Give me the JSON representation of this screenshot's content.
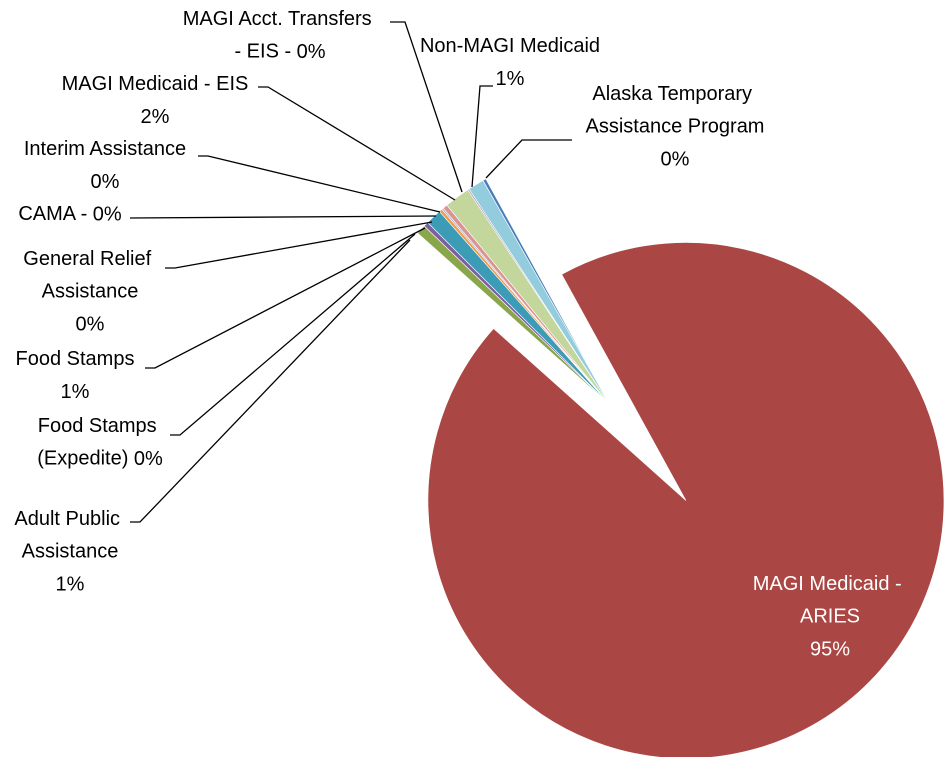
{
  "chart_data": {
    "type": "pie",
    "categories": [
      "Alaska Temporary Assistance Program",
      "MAGI Medicaid - ARIES",
      "Adult Public Assistance",
      "Food Stamps (Expedite)",
      "Food Stamps",
      "General Relief Assistance",
      "CAMA -",
      "Interim Assistance",
      "MAGI Medicaid - EIS",
      "MAGI Acct. Transfers - EIS -",
      "Non-MAGI Medicaid"
    ],
    "values": [
      0.2,
      94.6,
      0.6,
      0.3,
      1.0,
      0.2,
      0.1,
      0.3,
      1.6,
      0.1,
      1.0
    ],
    "value_labels": [
      "0%",
      "95%",
      "1%",
      "0%",
      "1%",
      "0%",
      "0%",
      "0%",
      "2%",
      "0%",
      "1%"
    ],
    "colors": [
      "#4a7ebb",
      "#aa4644",
      "#8aa64b",
      "#7d5fa0",
      "#3c9bb5",
      "#f39a4a",
      "#95b3d7",
      "#d99594",
      "#c3d69b",
      "#b3a2c7",
      "#93cddd"
    ],
    "exploded": [
      1
    ]
  }
}
